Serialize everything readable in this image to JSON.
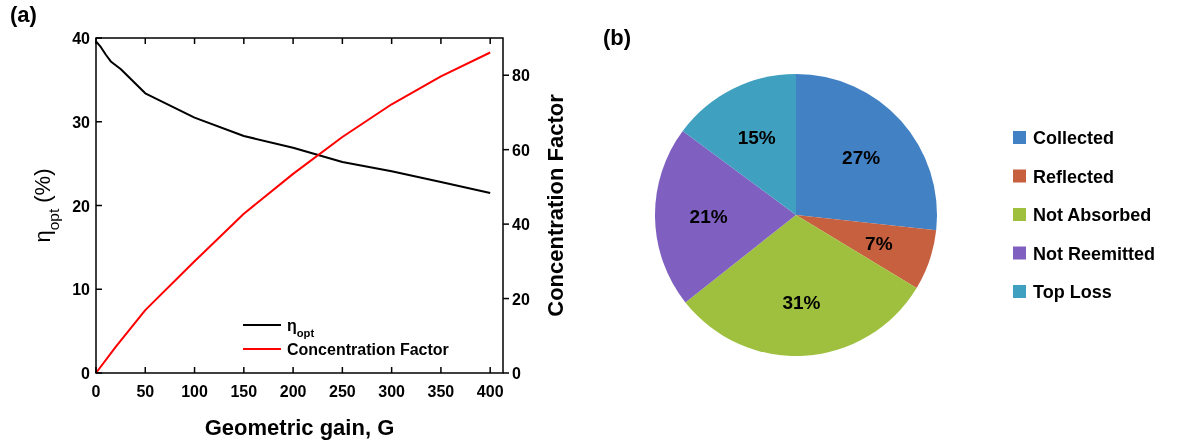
{
  "chart_data": [
    {
      "type": "line",
      "title": "(a)",
      "xlabel": "Geometric gain, G",
      "ylabel": "η$_{opt}$ (%)",
      "y2label": "Concentration Factor",
      "xlim": [
        0,
        413
      ],
      "xticks": [
        0,
        50,
        100,
        150,
        200,
        250,
        300,
        350,
        400
      ],
      "ylim": [
        0,
        40
      ],
      "yticks": [
        0,
        10,
        20,
        30,
        40
      ],
      "y2lim": [
        0,
        90
      ],
      "y2ticks": [
        0,
        20,
        40,
        60,
        80
      ],
      "legend": "bottom right",
      "grid": false,
      "series": [
        {
          "name": "η$_{opt}$",
          "color": "#000000",
          "x": [
            0,
            5,
            10,
            15,
            25,
            50,
            100,
            150,
            200,
            250,
            300,
            350,
            400
          ],
          "values": [
            39.6,
            38.9,
            38,
            37.2,
            36.3,
            33.4,
            30.5,
            28.3,
            26.9,
            25.2,
            24.1,
            22.8,
            21.5
          ]
        },
        {
          "name": "Concentration Factor",
          "color": "#ff0000",
          "axis": "y2",
          "x": [
            0,
            20,
            50,
            100,
            150,
            200,
            250,
            300,
            350,
            400
          ],
          "values": [
            0,
            7,
            16.9,
            30,
            42.8,
            53.5,
            63.4,
            72.2,
            79.7,
            86.1
          ]
        }
      ]
    },
    {
      "type": "pie",
      "title": "(b)",
      "categories": [
        "Collected",
        "Reflected",
        "Not Absorbed",
        "Not Reemitted",
        "Top Loss"
      ],
      "values": [
        27,
        7,
        31,
        21,
        15
      ],
      "colors": [
        "#4281c3",
        "#c6603e",
        "#9fc03f",
        "#7f60c0",
        "#40a0c0"
      ],
      "value_labels": [
        "27%",
        "7%",
        "31%",
        "21%",
        "15%"
      ],
      "legend": "right"
    }
  ]
}
